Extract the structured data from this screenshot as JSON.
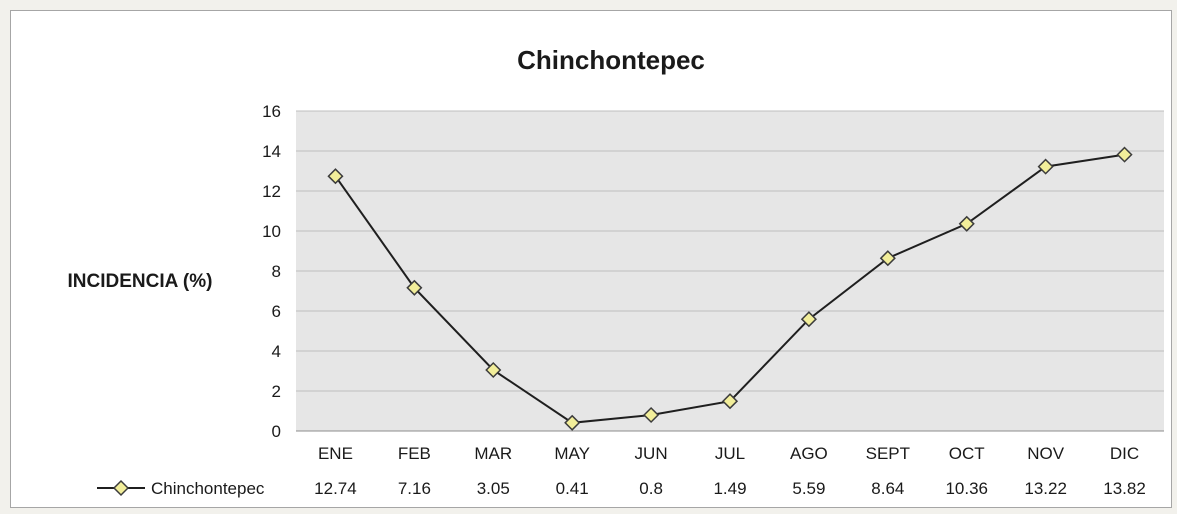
{
  "chart_data": {
    "type": "line",
    "title": "Chinchontepec",
    "xlabel": "",
    "ylabel": "INCIDENCIA (%)",
    "ylim": [
      0,
      16
    ],
    "yticks": [
      "0",
      "2",
      "4",
      "6",
      "8",
      "10",
      "12",
      "14",
      "16"
    ],
    "grid": true,
    "legend_position": "bottom (data table)",
    "categories": [
      "ENE",
      "FEB",
      "MAR",
      "MAY",
      "JUN",
      "JUL",
      "AGO",
      "SEPT",
      "OCT",
      "NOV",
      "DIC"
    ],
    "series": [
      {
        "name": "Chinchontepec",
        "values": [
          12.74,
          7.16,
          3.05,
          0.41,
          0.8,
          1.49,
          5.59,
          8.64,
          10.36,
          13.22,
          13.82
        ],
        "labels": [
          "12.74",
          "7.16",
          "3.05",
          "0.41",
          "0.8",
          "1.49",
          "5.59",
          "8.64",
          "10.36",
          "13.22",
          "13.82"
        ],
        "line_color": "#1f1f1f",
        "marker": "diamond",
        "marker_fill": "#f2ee9a",
        "marker_stroke": "#3c3c3c"
      }
    ]
  }
}
